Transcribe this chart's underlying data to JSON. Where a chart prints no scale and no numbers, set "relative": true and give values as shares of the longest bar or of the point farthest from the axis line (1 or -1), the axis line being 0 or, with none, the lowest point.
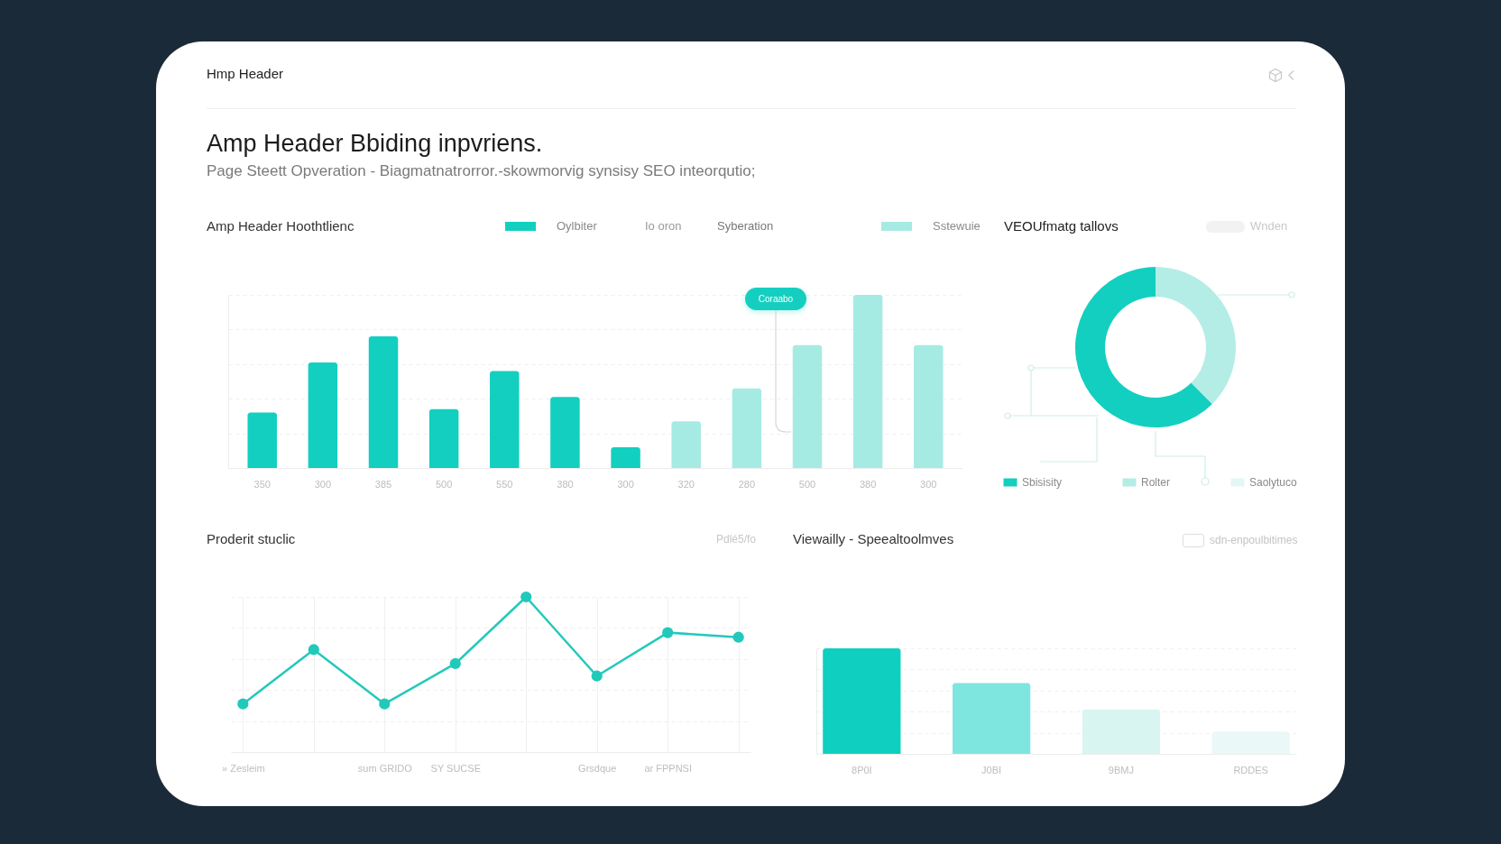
{
  "chart_data": [
    {
      "type": "other",
      "title": "Amp Header Bbiding inpvriens.",
      "subtitle": "Page Steett Opveration - Biagmatnatrorror.-skowmorvig synsisy SEO inteorqutio;",
      "annotations": [
        "Hmp Header"
      ]
    },
    {
      "type": "bar",
      "title": "Amp Header Hoothtlienc",
      "categories": [
        "350",
        "300",
        "385",
        "500",
        "550",
        "380",
        "300",
        "320",
        "280",
        "500",
        "380",
        "300"
      ],
      "series": [
        {
          "name": "Oylbiter",
          "color": "#13cfc0",
          "values": [
            0.32,
            0.61,
            0.76,
            0.34,
            0.56,
            0.41,
            0.12,
            null,
            null,
            null,
            null,
            null
          ]
        },
        {
          "name": "Sstewuie",
          "color": "#a6ebe3",
          "values": [
            null,
            null,
            null,
            null,
            null,
            null,
            null,
            0.27,
            0.46,
            0.71,
            1,
            0.71
          ]
        }
      ],
      "relative": true,
      "grid": "y",
      "legend": "top",
      "annotations": [
        "Io oron",
        "Syberation",
        "Coraabo"
      ]
    },
    {
      "type": "donut",
      "title": "VEOUfmatg tallovs",
      "categories": [
        "Sbisisity",
        "Rolter",
        "Saolytuco"
      ],
      "values": [
        62.5,
        37.5,
        0
      ],
      "colors": [
        "#13cfc0",
        "#b3ede6",
        "#e4f7f5"
      ],
      "legend": "bottom",
      "annotations": [
        "Wnden"
      ]
    },
    {
      "type": "line",
      "title": "Proderit stuclic",
      "categories": [
        "» Zesleim",
        null,
        "sum GRIDO",
        "SY SUCSE",
        null,
        "Grsdque",
        "ar FPPNSI",
        null
      ],
      "values": [
        0.31,
        0.66,
        0.31,
        0.57,
        1,
        0.49,
        0.77,
        0.74
      ],
      "color": "#22c9bb",
      "marker": "circle",
      "relative": true,
      "grid": true,
      "annotations": [
        "Pdlé5/fo"
      ]
    },
    {
      "type": "bar",
      "title": "Viewailly - Speealtoolmves",
      "categories": [
        "8P0I",
        "J0BI",
        "9BMJ",
        "RDDES"
      ],
      "values": [
        1,
        0.67,
        0.42,
        0.21
      ],
      "colors": [
        "#0fcfc0",
        "#7ee6df",
        "#d9f5f2",
        "#eaf8f7"
      ],
      "relative": true,
      "grid": "y",
      "annotations": [
        "sdn-enpoulbitimes"
      ]
    }
  ]
}
